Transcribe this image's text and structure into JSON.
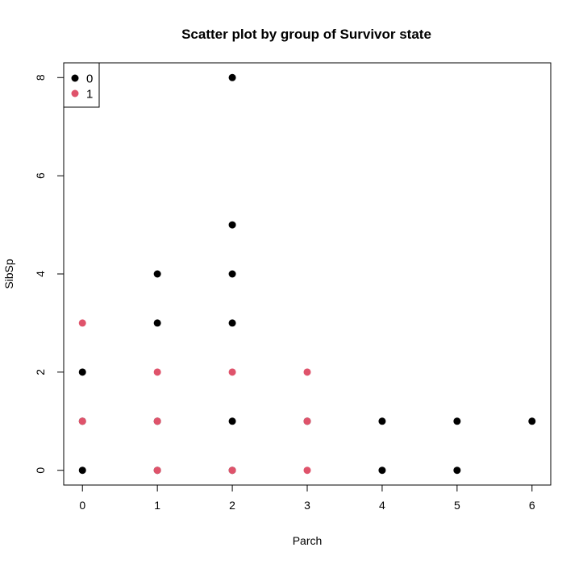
{
  "chart_data": {
    "type": "scatter",
    "title": "Scatter plot by group of Survivor state",
    "xlabel": "Parch",
    "ylabel": "SibSp",
    "xlim": [
      -0.25,
      6.25
    ],
    "ylim": [
      -0.3,
      8.3
    ],
    "xticks": [
      0,
      1,
      2,
      3,
      4,
      5,
      6
    ],
    "yticks": [
      0,
      2,
      4,
      6,
      8
    ],
    "grid": false,
    "legend_position": "top-left",
    "series": [
      {
        "name": "0",
        "color": "#000000",
        "points": [
          [
            0,
            0
          ],
          [
            0,
            1
          ],
          [
            0,
            2
          ],
          [
            1,
            0
          ],
          [
            1,
            1
          ],
          [
            1,
            3
          ],
          [
            1,
            4
          ],
          [
            2,
            0
          ],
          [
            2,
            1
          ],
          [
            2,
            3
          ],
          [
            2,
            4
          ],
          [
            2,
            5
          ],
          [
            2,
            8
          ],
          [
            3,
            1
          ],
          [
            4,
            0
          ],
          [
            4,
            1
          ],
          [
            5,
            0
          ],
          [
            5,
            1
          ],
          [
            6,
            1
          ]
        ]
      },
      {
        "name": "1",
        "color": "#DF536B",
        "points": [
          [
            0,
            1
          ],
          [
            0,
            3
          ],
          [
            1,
            0
          ],
          [
            1,
            1
          ],
          [
            1,
            2
          ],
          [
            2,
            0
          ],
          [
            2,
            2
          ],
          [
            3,
            0
          ],
          [
            3,
            1
          ],
          [
            3,
            2
          ]
        ]
      }
    ]
  }
}
